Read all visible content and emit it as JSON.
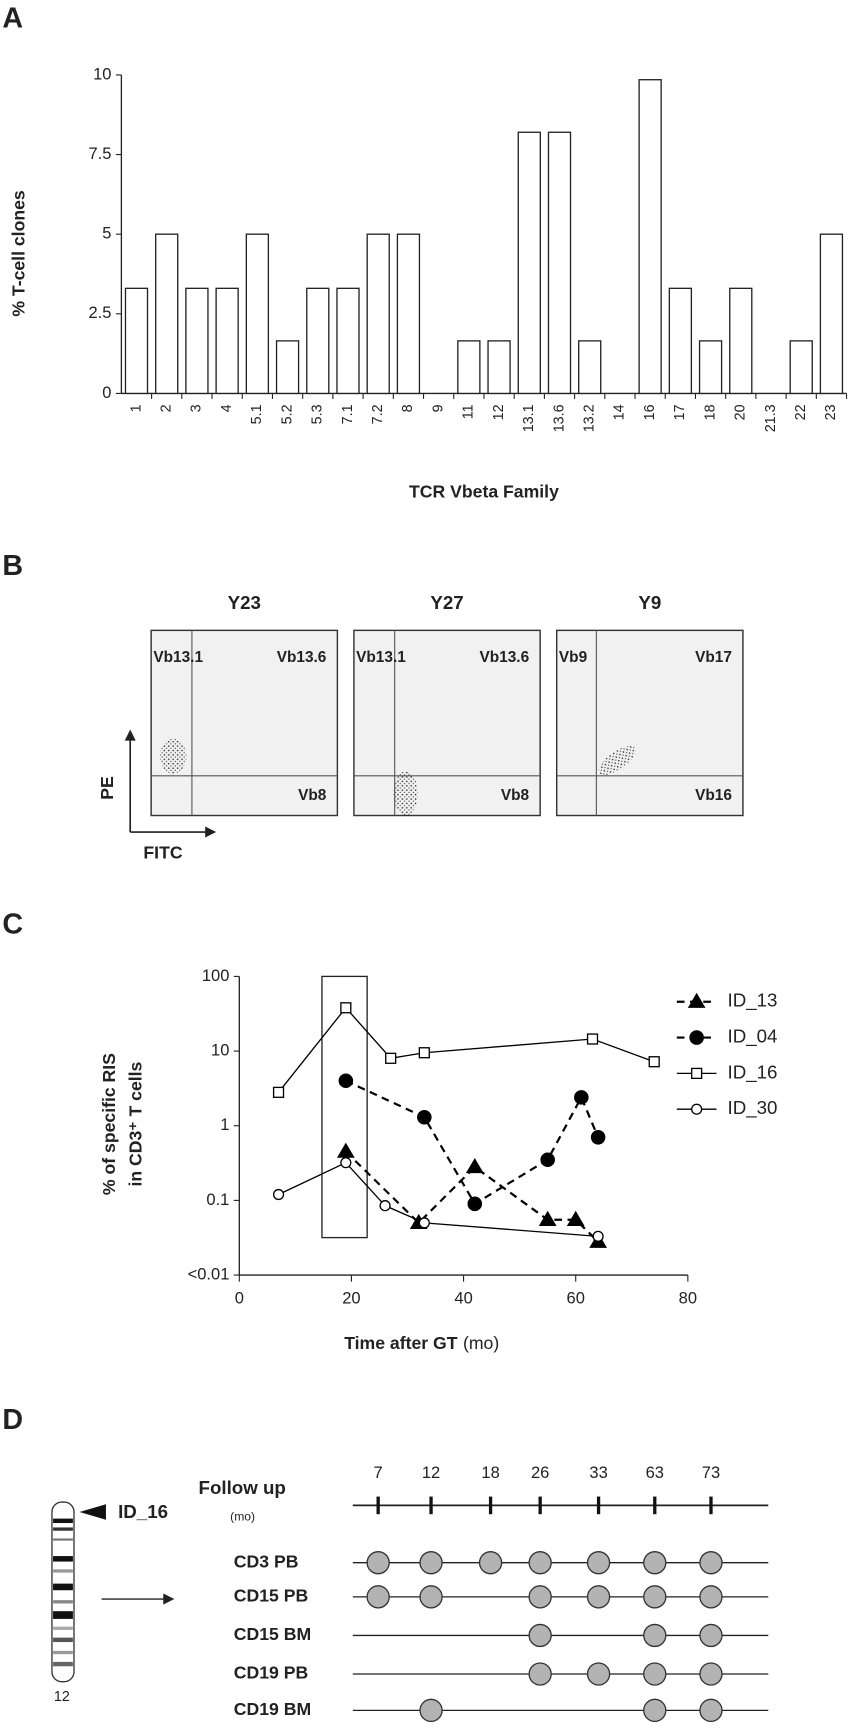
{
  "panel_labels": [
    "A",
    "B",
    "C",
    "D"
  ],
  "chart_data": [
    {
      "type": "bar",
      "ylabel": "% T-cell clones",
      "xlabel": "TCR Vbeta Family",
      "categories": [
        "1",
        "2",
        "3",
        "4",
        "5.1",
        "5.2",
        "5.3",
        "7.1",
        "7.2",
        "8",
        "9",
        "11",
        "12",
        "13.1",
        "13.6",
        "13.2",
        "14",
        "16",
        "17",
        "18",
        "20",
        "21.3",
        "22",
        "23"
      ],
      "values": [
        3.3,
        5,
        3.3,
        3.3,
        5,
        1.65,
        3.3,
        3.3,
        5,
        5,
        0,
        1.65,
        1.65,
        8.2,
        8.2,
        1.65,
        0,
        9.85,
        3.3,
        1.65,
        3.3,
        0,
        1.65,
        5
      ],
      "color": "#ffffff",
      "ylim": [
        0,
        10
      ],
      "yticks": [
        0,
        2.5,
        5,
        7.5,
        10
      ]
    },
    {
      "type": "line",
      "ylabel": [
        "% of specific RIS",
        "in CD3⁺ T cells"
      ],
      "xlabel": "Time after GT",
      "xlabel_unit": "(mo)",
      "log_y": true,
      "xlim": [
        0,
        80
      ],
      "xticks": [
        0,
        20,
        40,
        60,
        80
      ],
      "ylim": [
        0.01,
        100
      ],
      "yticks": [
        {
          "value": 0.01,
          "label": "<0.01"
        },
        0.1,
        1,
        10,
        100
      ],
      "series": [
        {
          "name": "ID_13",
          "color": "#000000",
          "line_style": "dashed",
          "marker": "triangle",
          "filled": true,
          "x": [
            19,
            32,
            42,
            55,
            60,
            64
          ],
          "values": [
            0.45,
            0.05,
            0.28,
            0.055,
            0.055,
            0.028
          ]
        },
        {
          "name": "ID_04",
          "color": "#000000",
          "line_style": "dashed",
          "marker": "circle",
          "filled": true,
          "x": [
            19,
            33,
            42,
            55,
            61,
            64
          ],
          "values": [
            4,
            1.3,
            0.09,
            0.35,
            2.4,
            0.7
          ]
        },
        {
          "name": "ID_16",
          "color": "#000000",
          "line_style": "solid",
          "marker": "square",
          "filled": false,
          "x": [
            7,
            19,
            27,
            33,
            63,
            74
          ],
          "values": [
            2.8,
            38,
            8,
            9.5,
            14.5,
            7.2
          ]
        },
        {
          "name": "ID_30",
          "color": "#000000",
          "line_style": "solid",
          "marker": "circle",
          "filled": false,
          "x": [
            7,
            19,
            26,
            33,
            64
          ],
          "values": [
            0.12,
            0.32,
            0.085,
            0.05,
            0.033
          ]
        }
      ]
    }
  ],
  "flow_panel": {
    "y_axis": "PE",
    "x_axis": "FITC",
    "plots": [
      {
        "title": "Y23",
        "quadrants": [
          "Vb13.1",
          "Vb13.6",
          "Vb8"
        ]
      },
      {
        "title": "Y27",
        "quadrants": [
          "Vb13.1",
          "Vb13.6",
          "Vb8"
        ]
      },
      {
        "title": "Y9",
        "quadrants": [
          "Vb9",
          "Vb17",
          "Vb16"
        ]
      }
    ]
  },
  "integration_panel": {
    "chromosome": "12",
    "site": "ID_16",
    "follow_up": {
      "title": "Follow up",
      "unit": "(mo)",
      "timepoints": [
        7,
        12,
        18,
        26,
        33,
        63,
        73
      ]
    },
    "rows": [
      {
        "label": "CD3 PB",
        "detected": [
          true,
          true,
          true,
          true,
          true,
          true,
          true
        ]
      },
      {
        "label": "CD15 PB",
        "detected": [
          true,
          true,
          false,
          true,
          true,
          true,
          true
        ]
      },
      {
        "label": "CD15 BM",
        "detected": [
          false,
          false,
          false,
          true,
          false,
          true,
          true
        ]
      },
      {
        "label": "CD19 PB",
        "detected": [
          false,
          false,
          false,
          true,
          true,
          true,
          true
        ]
      },
      {
        "label": "CD19 BM",
        "detected": [
          false,
          true,
          false,
          false,
          false,
          true,
          true
        ]
      }
    ]
  }
}
